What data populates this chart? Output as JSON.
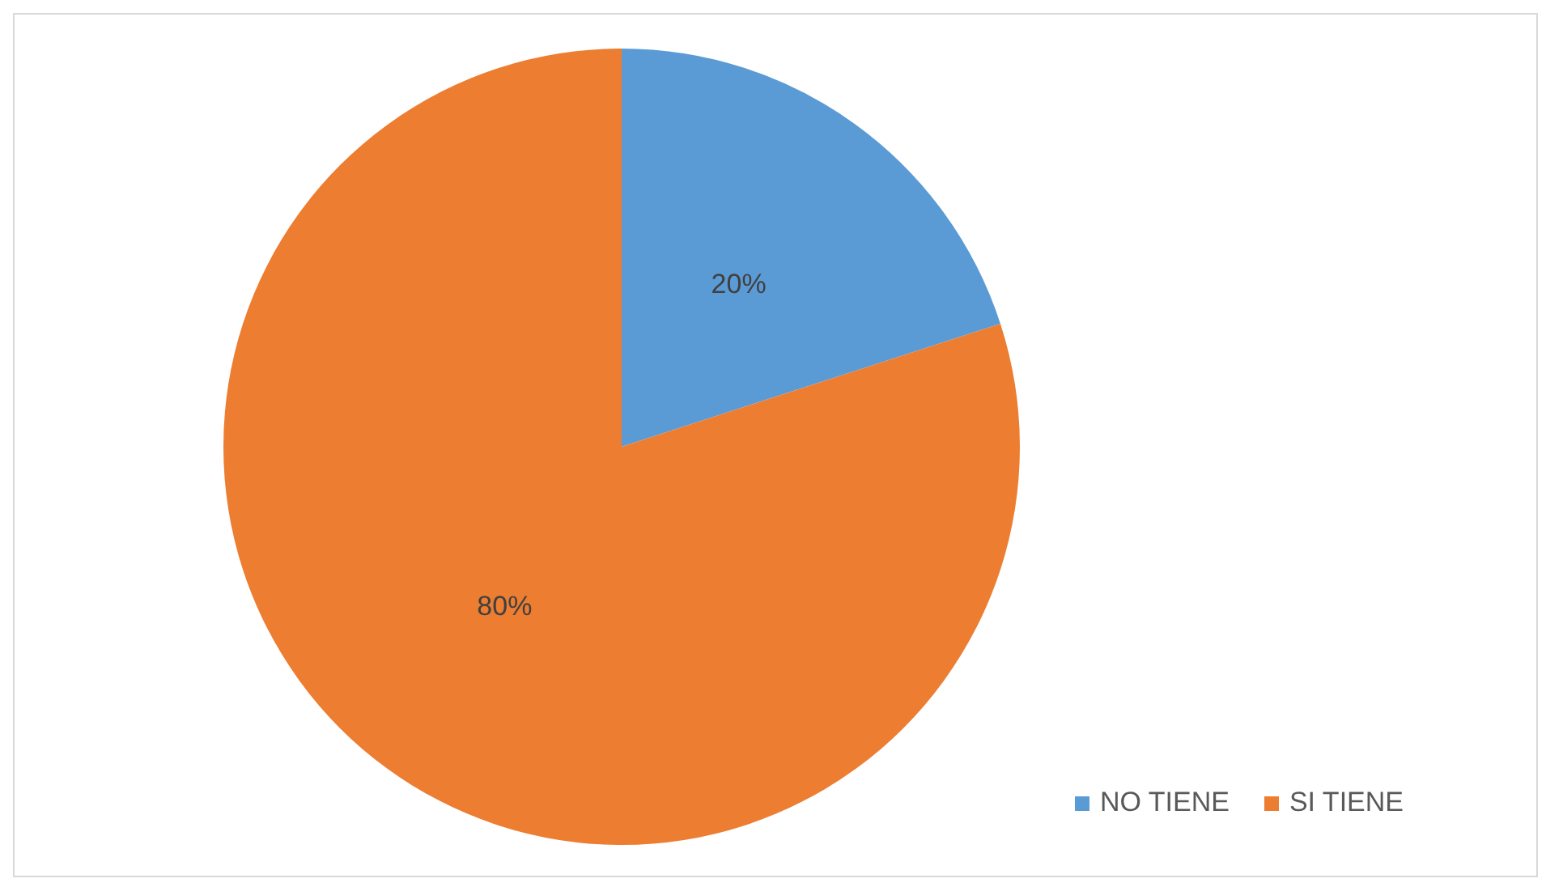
{
  "chart_data": {
    "type": "pie",
    "categories": [
      "NO TIENE",
      "SI TIENE"
    ],
    "values": [
      20,
      80
    ],
    "colors": [
      "#5b9bd5",
      "#ed7d31"
    ],
    "value_labels": [
      "20%",
      "80%"
    ],
    "legend": "bottom right"
  }
}
